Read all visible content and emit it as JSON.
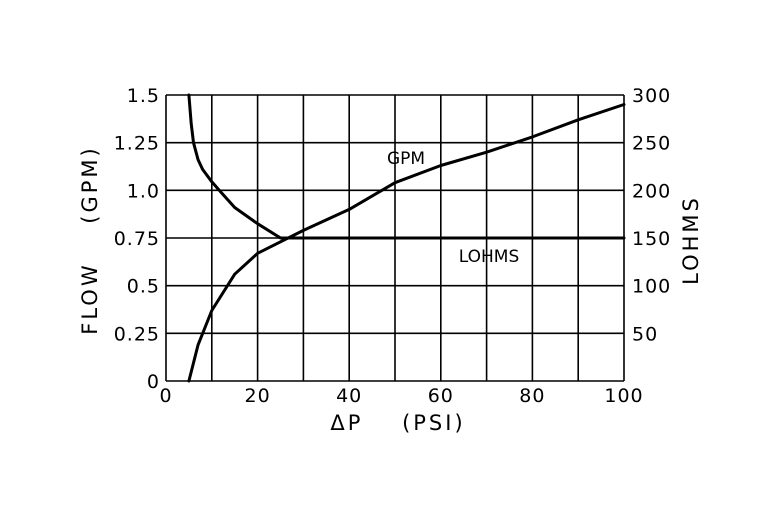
{
  "chart_data": {
    "type": "line",
    "xlabel": "ΔP    (PSI)",
    "ylabel_left": "FLOW    (GPM)",
    "ylabel_right": "LOHMS",
    "xlim": [
      0,
      100
    ],
    "ylim_left": [
      0,
      1.5
    ],
    "ylim_right": [
      0,
      300
    ],
    "x_ticks": [
      "0",
      "20",
      "40",
      "60",
      "80",
      "100"
    ],
    "y_left_ticks": [
      "0",
      "0.25",
      "0.5",
      "0.75",
      "1.0",
      "1.25",
      "1.5"
    ],
    "y_right_ticks": [
      "50",
      "100",
      "150",
      "200",
      "250",
      "300"
    ],
    "grid": true,
    "grid_x_step": 10,
    "series": [
      {
        "name": "GPM",
        "axis": "left",
        "x": [
          5,
          7,
          10,
          15,
          20,
          25,
          30,
          40,
          50,
          60,
          70,
          80,
          90,
          100
        ],
        "y": [
          0.0,
          0.19,
          0.37,
          0.56,
          0.67,
          0.73,
          0.79,
          0.9,
          1.04,
          1.13,
          1.2,
          1.28,
          1.37,
          1.45
        ]
      },
      {
        "name": "LOHMS",
        "axis": "right",
        "x": [
          5,
          5.5,
          6,
          7,
          8,
          10,
          12,
          15,
          20,
          25,
          30,
          40,
          60,
          80,
          100
        ],
        "y": [
          300,
          270,
          250,
          232,
          222,
          209,
          198,
          182,
          165,
          150,
          150,
          150,
          150,
          150,
          150
        ]
      }
    ]
  }
}
